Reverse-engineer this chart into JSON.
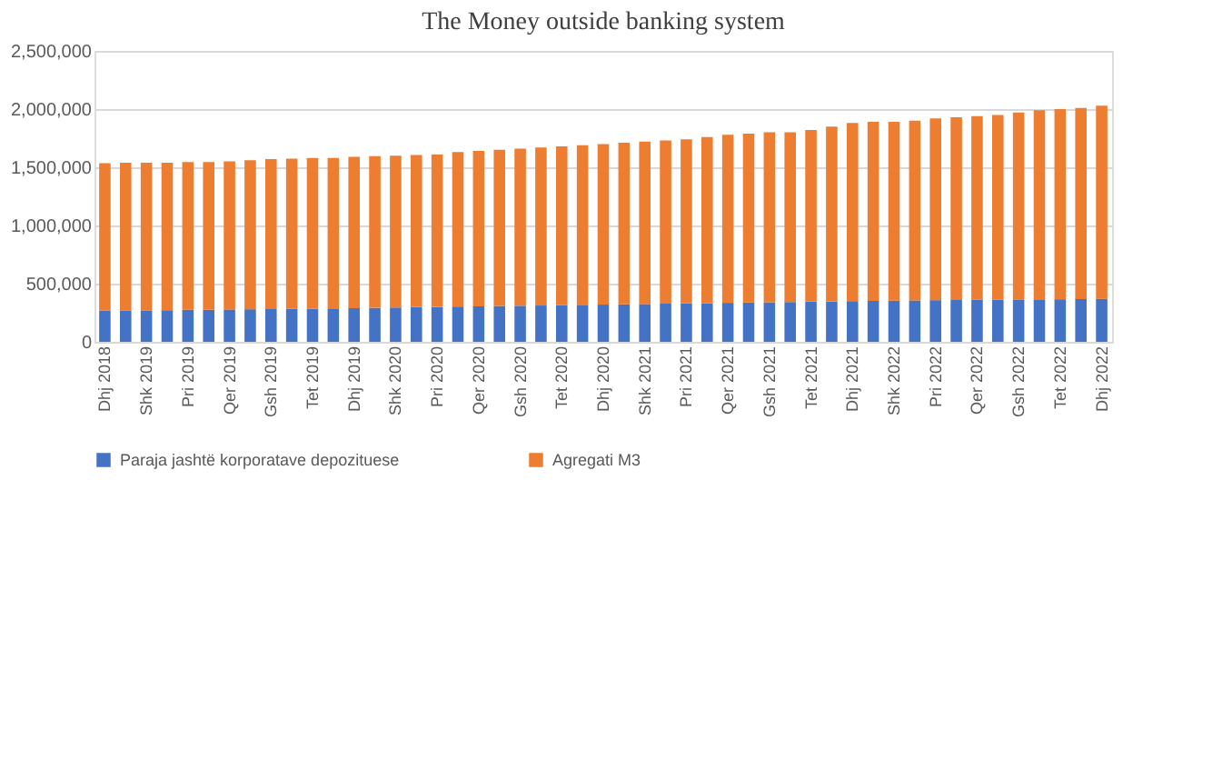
{
  "chart_data": {
    "type": "bar",
    "stacked": true,
    "title": "The Money outside banking  system",
    "categories": [
      "Dhj 2018",
      null,
      "Shk 2019",
      null,
      "Pri 2019",
      null,
      "Qer 2019",
      null,
      "Gsh 2019",
      null,
      "Tet 2019",
      null,
      "Dhj 2019",
      null,
      "Shk 2020",
      null,
      "Pri 2020",
      null,
      "Qer 2020",
      null,
      "Gsh 2020",
      null,
      "Tet 2020",
      null,
      "Dhj 2020",
      null,
      "Shk 2021",
      null,
      "Pri 2021",
      null,
      "Qer 2021",
      null,
      "Gsh 2021",
      null,
      "Tet 2021",
      null,
      "Dhj 2021",
      null,
      "Shk 2022",
      null,
      "Pri 2022",
      null,
      "Qer 2022",
      null,
      "Gsh 2022",
      null,
      "Tet 2022",
      null,
      "Dhj 2022"
    ],
    "series": [
      {
        "name": "Paraja jashtë korporatave depozituese",
        "color": "#4472c4",
        "values": [
          270000,
          270000,
          270000,
          272000,
          275000,
          275000,
          278000,
          280000,
          282000,
          283000,
          285000,
          287000,
          290000,
          292000,
          295000,
          298000,
          300000,
          303000,
          305000,
          308000,
          310000,
          312000,
          315000,
          318000,
          320000,
          322000,
          325000,
          328000,
          330000,
          332000,
          335000,
          338000,
          340000,
          342000,
          345000,
          347000,
          350000,
          352000,
          354000,
          356000,
          358000,
          360000,
          362000,
          363000,
          364000,
          365000,
          366000,
          368000,
          370000
        ]
      },
      {
        "name": "Agregati M3",
        "color": "#ed7d31",
        "values": [
          1265000,
          1270000,
          1270000,
          1268000,
          1270000,
          1270000,
          1272000,
          1280000,
          1288000,
          1292000,
          1295000,
          1293000,
          1300000,
          1303000,
          1305000,
          1307000,
          1310000,
          1327000,
          1335000,
          1342000,
          1350000,
          1358000,
          1365000,
          1372000,
          1380000,
          1388000,
          1395000,
          1402000,
          1410000,
          1428000,
          1445000,
          1452000,
          1460000,
          1458000,
          1475000,
          1503000,
          1530000,
          1538000,
          1536000,
          1544000,
          1562000,
          1570000,
          1578000,
          1587000,
          1606000,
          1625000,
          1634000,
          1642000,
          1660000
        ]
      }
    ],
    "ylim": [
      0,
      2500000
    ],
    "yticks": [
      {
        "value": 0,
        "label": "0"
      },
      {
        "value": 500000,
        "label": "500,000"
      },
      {
        "value": 1000000,
        "label": "1,000,000"
      },
      {
        "value": 1500000,
        "label": "1,500,000"
      },
      {
        "value": 2000000,
        "label": "2,000,000"
      },
      {
        "value": 2500000,
        "label": "2,500,000"
      }
    ],
    "grid": "y",
    "legend": "bottom"
  }
}
